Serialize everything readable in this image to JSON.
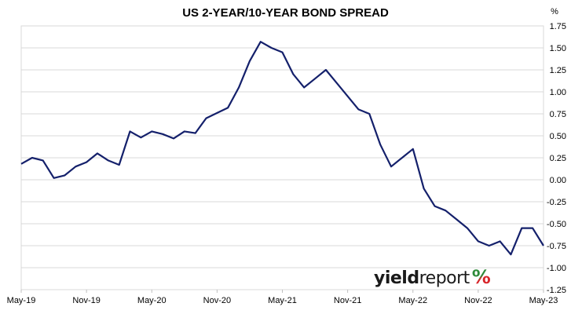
{
  "chart_data": {
    "type": "line",
    "title": "US 2-YEAR/10-YEAR BOND SPREAD",
    "ylabel": "%",
    "ylim": [
      -1.25,
      1.75
    ],
    "yticks": [
      1.75,
      1.5,
      1.25,
      1.0,
      0.75,
      0.5,
      0.25,
      0.0,
      -0.25,
      -0.5,
      -0.75,
      -1.0,
      -1.25
    ],
    "ytick_labels": [
      "1.75",
      "1.50",
      "1.25",
      "1.00",
      "0.75",
      "0.50",
      "0.25",
      "0.00",
      "-0.25",
      "-0.50",
      "-0.75",
      "-1.00",
      "-1.25"
    ],
    "xticks": [
      "May-19",
      "Nov-19",
      "May-20",
      "Nov-20",
      "May-21",
      "Nov-21",
      "May-22",
      "Nov-22",
      "May-23"
    ],
    "xlim": [
      "2019-05",
      "2023-05"
    ],
    "grid": "horizontal",
    "line_color": "#14206b",
    "series": [
      {
        "x": [
          "2019-05",
          "2019-06",
          "2019-07",
          "2019-08",
          "2019-09",
          "2019-10",
          "2019-11",
          "2019-12",
          "2020-01",
          "2020-02",
          "2020-03",
          "2020-04",
          "2020-05",
          "2020-06",
          "2020-07",
          "2020-08",
          "2020-09",
          "2020-10",
          "2020-11",
          "2020-12",
          "2021-01",
          "2021-02",
          "2021-03",
          "2021-04",
          "2021-05",
          "2021-06",
          "2021-07",
          "2021-08",
          "2021-09",
          "2021-10",
          "2021-11",
          "2021-12",
          "2022-01",
          "2022-02",
          "2022-03",
          "2022-04",
          "2022-05",
          "2022-06",
          "2022-07",
          "2022-08",
          "2022-09",
          "2022-10",
          "2022-11",
          "2022-12",
          "2023-01",
          "2023-02",
          "2023-03",
          "2023-04",
          "2023-05"
        ],
        "values": [
          0.18,
          0.25,
          0.22,
          0.02,
          0.05,
          0.15,
          0.2,
          0.3,
          0.22,
          0.17,
          0.55,
          0.48,
          0.55,
          0.52,
          0.47,
          0.55,
          0.53,
          0.7,
          0.76,
          0.82,
          1.05,
          1.35,
          1.57,
          1.5,
          1.45,
          1.2,
          1.05,
          1.15,
          1.25,
          1.1,
          0.95,
          0.8,
          0.75,
          0.4,
          0.15,
          0.25,
          0.35,
          -0.1,
          -0.3,
          -0.35,
          -0.45,
          -0.55,
          -0.7,
          -0.75,
          -0.7,
          -0.85,
          -0.55,
          -0.55,
          -0.75
        ]
      }
    ]
  },
  "logo": {
    "part1": "yield",
    "part2": "report",
    "part3": "%"
  }
}
